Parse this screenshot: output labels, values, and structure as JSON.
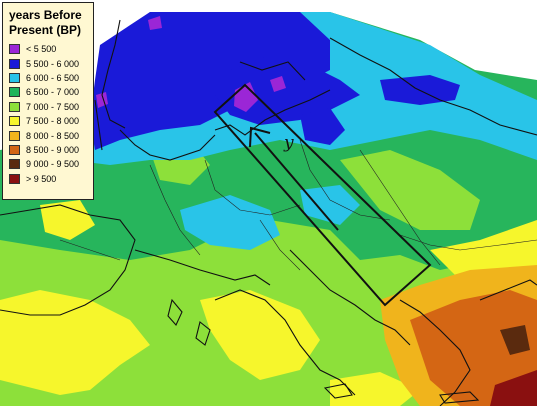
{
  "legend": {
    "title_line1": "years Before",
    "title_line2": "Present (BP)",
    "items": [
      {
        "label": "< 5 500",
        "color": "#9b26d6"
      },
      {
        "label": "5 500 - 6 000",
        "color": "#1a1ad8"
      },
      {
        "label": "6 000 - 6 500",
        "color": "#29c4e8"
      },
      {
        "label": "6 500 - 7 000",
        "color": "#1fb45a"
      },
      {
        "label": "7 000 - 7 500",
        "color": "#8de03a"
      },
      {
        "label": "7 500 - 8 000",
        "color": "#f6f62c"
      },
      {
        "label": "8 000 - 8 500",
        "color": "#f0b41c"
      },
      {
        "label": "8 500 - 9 000",
        "color": "#d46614"
      },
      {
        "label": "9 000 - 9 500",
        "color": "#5a2a0e"
      },
      {
        "label": "> 9 500",
        "color": "#8a1010"
      }
    ]
  },
  "map": {
    "arrow_label": "y"
  }
}
